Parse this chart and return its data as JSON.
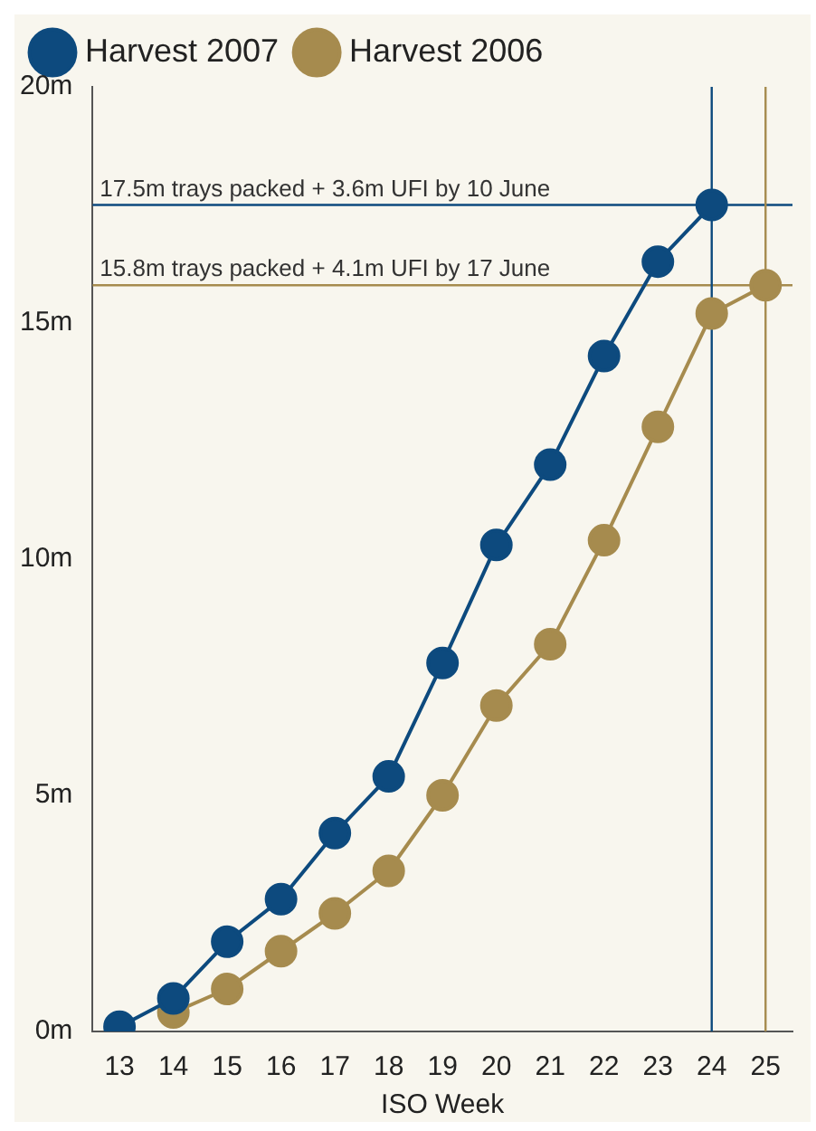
{
  "chart_data": {
    "type": "line",
    "xlabel": "ISO Week",
    "x": [
      13,
      14,
      15,
      16,
      17,
      18,
      19,
      20,
      21,
      22,
      23,
      24,
      25
    ],
    "series": [
      {
        "name": "Harvest 2007",
        "color": "#0d4a7e",
        "values": [
          0.1,
          0.7,
          1.9,
          2.8,
          4.2,
          5.4,
          7.8,
          10.3,
          12.0,
          14.3,
          16.3,
          17.5,
          null
        ]
      },
      {
        "name": "Harvest 2006",
        "color": "#a68b4e",
        "values": [
          null,
          0.4,
          0.9,
          1.7,
          2.5,
          3.4,
          5.0,
          6.9,
          8.2,
          10.4,
          12.8,
          15.2,
          15.8
        ]
      }
    ],
    "xlim": [
      12.5,
      25.5
    ],
    "xticks": [
      13,
      14,
      15,
      16,
      17,
      18,
      19,
      20,
      21,
      22,
      23,
      24,
      25
    ],
    "ylim": [
      0,
      20
    ],
    "yticks": [
      {
        "value": 0,
        "label": "0m"
      },
      {
        "value": 5,
        "label": "5m"
      },
      {
        "value": 10,
        "label": "10m"
      },
      {
        "value": 15,
        "label": "15m"
      },
      {
        "value": 20,
        "label": "20m"
      }
    ],
    "ref_lines": [
      {
        "axis": "y",
        "value": 17.5,
        "label": "17.5m trays packed + 3.6m UFI by 10 June",
        "color": "#0d4a7e"
      },
      {
        "axis": "y",
        "value": 15.8,
        "label": "15.8m trays packed + 4.1m UFI by 17 June",
        "color": "#a68b4e"
      },
      {
        "axis": "x",
        "value": 24,
        "color": "#0d4a7e"
      },
      {
        "axis": "x",
        "value": 25,
        "color": "#a68b4e"
      }
    ],
    "marker": "circle",
    "line_style": "solid",
    "grid": false,
    "legend": "top left"
  }
}
